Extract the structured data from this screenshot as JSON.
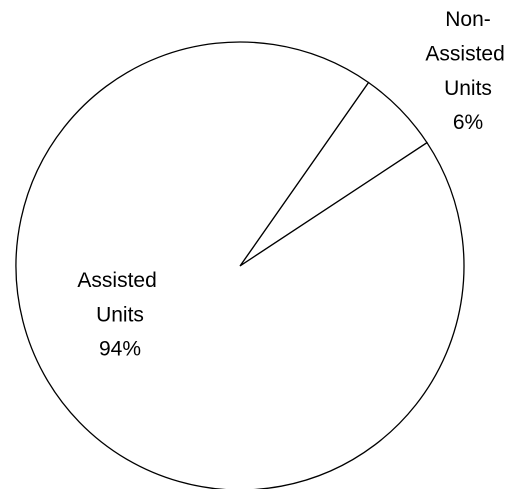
{
  "chart_data": {
    "type": "pie",
    "categories": [
      "Non-Assisted Units",
      "Assisted Units"
    ],
    "values": [
      6,
      94
    ],
    "value_labels": [
      "6%",
      "94%"
    ],
    "colors": [
      "#ffffff",
      "#ffffff"
    ],
    "edge_color": "#000000"
  }
}
